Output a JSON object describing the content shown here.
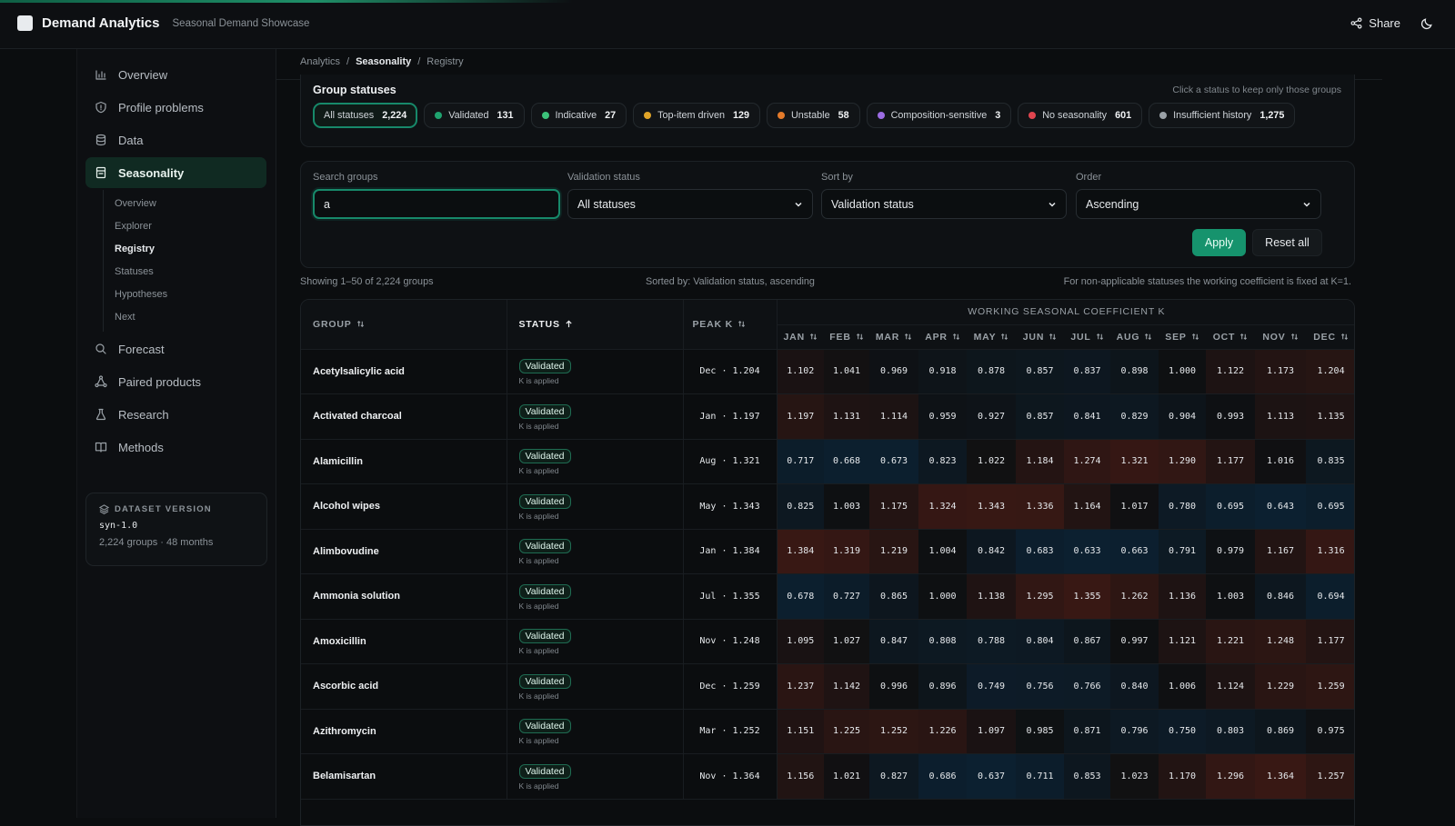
{
  "app": {
    "name": "Demand Analytics",
    "subtitle": "Seasonal Demand Showcase",
    "share_label": "Share"
  },
  "sidebar": {
    "items": [
      {
        "label": "Overview",
        "icon": "bar-chart-icon"
      },
      {
        "label": "Profile problems",
        "icon": "shield-icon"
      },
      {
        "label": "Data",
        "icon": "database-icon"
      },
      {
        "label": "Seasonality",
        "icon": "calendar-icon",
        "active": true
      },
      {
        "label": "Forecast",
        "icon": "search-icon"
      },
      {
        "label": "Paired products",
        "icon": "network-icon"
      },
      {
        "label": "Research",
        "icon": "flask-icon"
      },
      {
        "label": "Methods",
        "icon": "book-icon"
      }
    ],
    "seasonality_sub": [
      "Overview",
      "Explorer",
      "Registry",
      "Statuses",
      "Hypotheses",
      "Next"
    ],
    "dataset": {
      "label": "DATASET VERSION",
      "version": "syn-1.0",
      "meta": "2,224 groups · 48 months"
    }
  },
  "breadcrumb": {
    "items": [
      "Analytics",
      "Seasonality",
      "Registry"
    ],
    "sep": "/"
  },
  "statuses": {
    "title": "Group statuses",
    "hint": "Click a status to keep only those groups",
    "chips": [
      {
        "label": "All statuses",
        "count": "2,224",
        "color": "",
        "active": true
      },
      {
        "label": "Validated",
        "count": "131",
        "color": "#1fa36f"
      },
      {
        "label": "Indicative",
        "count": "27",
        "color": "#3cc27a"
      },
      {
        "label": "Top-item driven",
        "count": "129",
        "color": "#e0a428"
      },
      {
        "label": "Unstable",
        "count": "58",
        "color": "#e37a2a"
      },
      {
        "label": "Composition-sensitive",
        "count": "3",
        "color": "#9c6ce3"
      },
      {
        "label": "No seasonality",
        "count": "601",
        "color": "#e0454f"
      },
      {
        "label": "Insufficient history",
        "count": "1,275",
        "color": "#9aa1a7"
      }
    ]
  },
  "filters": {
    "search_label": "Search groups",
    "search_value": "a",
    "validation_label": "Validation status",
    "validation_value": "All statuses",
    "sort_label": "Sort by",
    "sort_value": "Validation status",
    "order_label": "Order",
    "order_value": "Ascending",
    "apply_label": "Apply",
    "reset_label": "Reset all"
  },
  "summary": {
    "showing": "Showing 1–50 of 2,224 groups",
    "sorted": "Sorted by: Validation status, ascending",
    "note": "For non-applicable statuses the working coefficient is fixed at K=1."
  },
  "table": {
    "headers": {
      "group": "GROUP",
      "status": "STATUS",
      "peak": "PEAK K",
      "coef": "WORKING SEASONAL COEFFICIENT K"
    },
    "months": [
      "JAN",
      "FEB",
      "MAR",
      "APR",
      "MAY",
      "JUN",
      "JUL",
      "AUG",
      "SEP",
      "OCT",
      "NOV",
      "DEC"
    ],
    "rows": [
      {
        "group": "Acetylsalicylic acid",
        "status": "Validated",
        "note": "K is applied",
        "peak": "Dec · 1.204",
        "k": [
          "1.102",
          "1.041",
          "0.969",
          "0.918",
          "0.878",
          "0.857",
          "0.837",
          "0.898",
          "1.000",
          "1.122",
          "1.173",
          "1.204"
        ]
      },
      {
        "group": "Activated charcoal",
        "status": "Validated",
        "note": "K is applied",
        "peak": "Jan · 1.197",
        "k": [
          "1.197",
          "1.131",
          "1.114",
          "0.959",
          "0.927",
          "0.857",
          "0.841",
          "0.829",
          "0.904",
          "0.993",
          "1.113",
          "1.135"
        ]
      },
      {
        "group": "Alamicillin",
        "status": "Validated",
        "note": "K is applied",
        "peak": "Aug · 1.321",
        "k": [
          "0.717",
          "0.668",
          "0.673",
          "0.823",
          "1.022",
          "1.184",
          "1.274",
          "1.321",
          "1.290",
          "1.177",
          "1.016",
          "0.835"
        ]
      },
      {
        "group": "Alcohol wipes",
        "status": "Validated",
        "note": "K is applied",
        "peak": "May · 1.343",
        "k": [
          "0.825",
          "1.003",
          "1.175",
          "1.324",
          "1.343",
          "1.336",
          "1.164",
          "1.017",
          "0.780",
          "0.695",
          "0.643",
          "0.695"
        ]
      },
      {
        "group": "Alimbovudine",
        "status": "Validated",
        "note": "K is applied",
        "peak": "Jan · 1.384",
        "k": [
          "1.384",
          "1.319",
          "1.219",
          "1.004",
          "0.842",
          "0.683",
          "0.633",
          "0.663",
          "0.791",
          "0.979",
          "1.167",
          "1.316"
        ]
      },
      {
        "group": "Ammonia solution",
        "status": "Validated",
        "note": "K is applied",
        "peak": "Jul · 1.355",
        "k": [
          "0.678",
          "0.727",
          "0.865",
          "1.000",
          "1.138",
          "1.295",
          "1.355",
          "1.262",
          "1.136",
          "1.003",
          "0.846",
          "0.694"
        ]
      },
      {
        "group": "Amoxicillin",
        "status": "Validated",
        "note": "K is applied",
        "peak": "Nov · 1.248",
        "k": [
          "1.095",
          "1.027",
          "0.847",
          "0.808",
          "0.788",
          "0.804",
          "0.867",
          "0.997",
          "1.121",
          "1.221",
          "1.248",
          "1.177"
        ]
      },
      {
        "group": "Ascorbic acid",
        "status": "Validated",
        "note": "K is applied",
        "peak": "Dec · 1.259",
        "k": [
          "1.237",
          "1.142",
          "0.996",
          "0.896",
          "0.749",
          "0.756",
          "0.766",
          "0.840",
          "1.006",
          "1.124",
          "1.229",
          "1.259"
        ]
      },
      {
        "group": "Azithromycin",
        "status": "Validated",
        "note": "K is applied",
        "peak": "Mar · 1.252",
        "k": [
          "1.151",
          "1.225",
          "1.252",
          "1.226",
          "1.097",
          "0.985",
          "0.871",
          "0.796",
          "0.750",
          "0.803",
          "0.869",
          "0.975"
        ]
      },
      {
        "group": "Belamisartan",
        "status": "Validated",
        "note": "K is applied",
        "peak": "Nov · 1.364",
        "k": [
          "1.156",
          "1.021",
          "0.827",
          "0.686",
          "0.637",
          "0.711",
          "0.853",
          "1.023",
          "1.170",
          "1.296",
          "1.364",
          "1.257"
        ]
      }
    ]
  },
  "colors": {
    "accent": "#16936d",
    "background": "#0b0d0f"
  }
}
